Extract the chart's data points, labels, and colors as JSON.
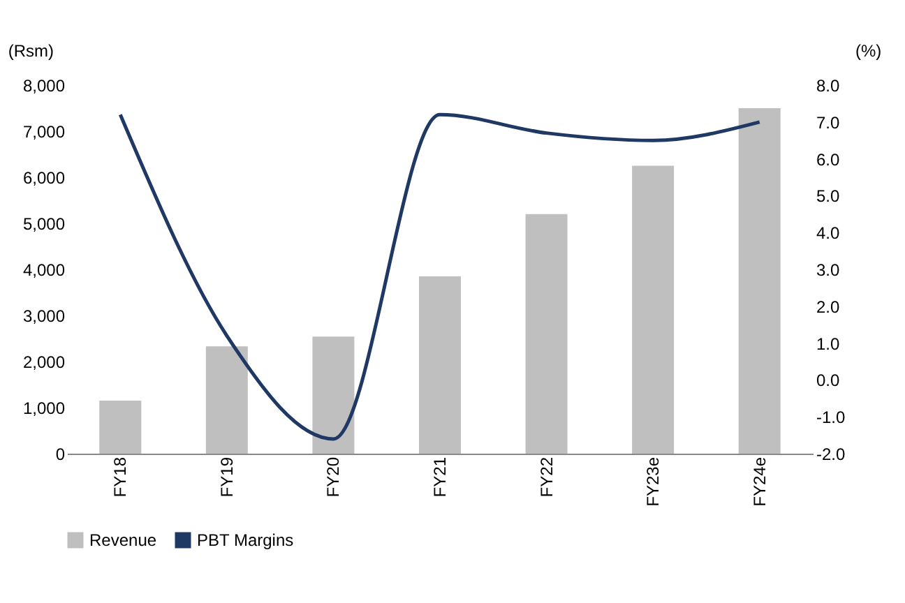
{
  "chart_data": {
    "type": "bar",
    "categories": [
      "FY18",
      "FY19",
      "FY20",
      "FY21",
      "FY22",
      "FY23e",
      "FY24e"
    ],
    "series": [
      {
        "name": "Revenue",
        "color": "#bfbfbf",
        "values": [
          1150,
          2330,
          2540,
          3850,
          5200,
          6250,
          7500
        ]
      },
      {
        "name": "PBT Margins",
        "type": "line",
        "axis": "y2",
        "color": "#1f3864",
        "values": [
          7.2,
          1.2,
          -1.6,
          7.2,
          6.7,
          6.5,
          7.0
        ]
      }
    ],
    "ylabel": "(Rsm)",
    "y2label": "(%)",
    "ylim": [
      0,
      8000
    ],
    "yticks": [
      0,
      {
        "value": 1000,
        "label": "1,000"
      },
      {
        "value": 2000,
        "label": "2,000"
      },
      {
        "value": 3000,
        "label": "3,000"
      },
      {
        "value": 4000,
        "label": "4,000"
      },
      {
        "value": 5000,
        "label": "5,000"
      },
      {
        "value": 6000,
        "label": "6,000"
      },
      {
        "value": 7000,
        "label": "7,000"
      },
      {
        "value": 8000,
        "label": "8,000"
      }
    ],
    "y2lim": [
      -2,
      8
    ],
    "y2ticks": [
      {
        "value": -2,
        "label": "-2.0"
      },
      {
        "value": -1,
        "label": "-1.0"
      },
      {
        "value": 0,
        "label": "0.0"
      },
      {
        "value": 1,
        "label": "1.0"
      },
      {
        "value": 2,
        "label": "2.0"
      },
      {
        "value": 3,
        "label": "3.0"
      },
      {
        "value": 4,
        "label": "4.0"
      },
      {
        "value": 5,
        "label": "5.0"
      },
      {
        "value": 6,
        "label": "6.0"
      },
      {
        "value": 7,
        "label": "7.0"
      },
      {
        "value": 8,
        "label": "8.0"
      }
    ],
    "legend": "bottom",
    "grid": false,
    "marker": "none"
  }
}
